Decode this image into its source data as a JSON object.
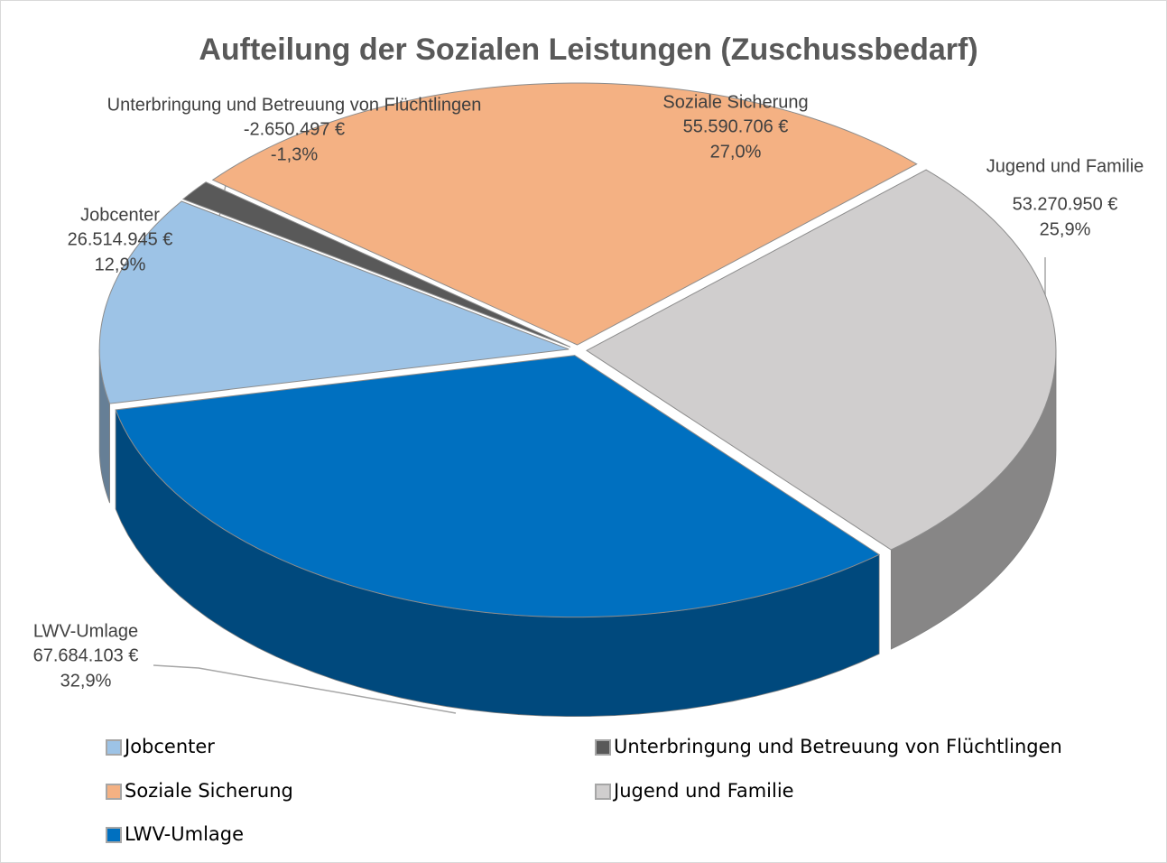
{
  "chart_data": {
    "type": "pie",
    "title": "Aufteilung der Sozialen Leistungen (Zuschussbedarf)",
    "categories": [
      "Jobcenter",
      "Unterbringung und Betreuung von Flüchtlingen",
      "Soziale Sicherung",
      "Jugend und Familie",
      "LWV-Umlage"
    ],
    "values": [
      26514945,
      -2650497,
      55590706,
      53270950,
      67684103
    ],
    "value_labels": [
      "26.514.945 €",
      "-2.650.497 €",
      "55.590.706 €",
      "53.270.950 €",
      "67.684.103 €"
    ],
    "percent_labels": [
      "12,9%",
      "-1,3%",
      "27,0%",
      "25,9%",
      "32,9%"
    ],
    "colors": [
      "#9dc3e6",
      "#595959",
      "#f4b183",
      "#d0cece",
      "#0070c0"
    ],
    "legend": "bottom"
  }
}
